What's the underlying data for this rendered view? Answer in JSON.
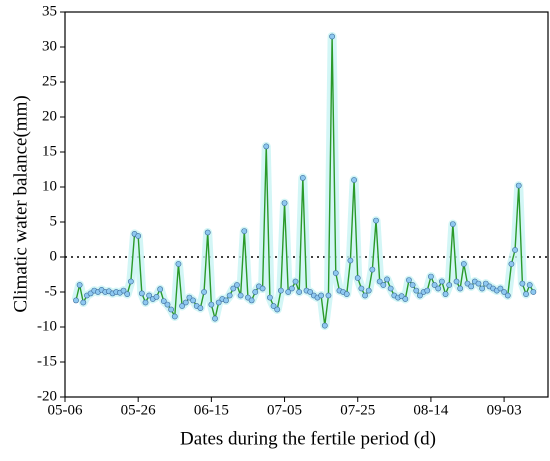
{
  "chart_data": {
    "type": "line",
    "xlabel": "Dates during the fertile period (d)",
    "ylabel": "Climatic water balance(mm)",
    "xlim": [
      0,
      132
    ],
    "ylim": [
      -20,
      35
    ],
    "xticks": [
      {
        "value": 0,
        "label": "05-06"
      },
      {
        "value": 20,
        "label": "05-26"
      },
      {
        "value": 40,
        "label": "06-15"
      },
      {
        "value": 60,
        "label": "07-05"
      },
      {
        "value": 80,
        "label": "07-25"
      },
      {
        "value": 100,
        "label": "08-14"
      },
      {
        "value": 120,
        "label": "09-03"
      }
    ],
    "yticks": [
      -20,
      -15,
      -10,
      -5,
      0,
      5,
      10,
      15,
      20,
      25,
      30,
      35
    ],
    "grid": false,
    "series": [
      {
        "color": "#2a9a2a",
        "marker_color": "#8ec8f0",
        "x": [
          3,
          4,
          5,
          6,
          7,
          8,
          9,
          10,
          11,
          12,
          13,
          14,
          15,
          16,
          17,
          18,
          19,
          20,
          21,
          22,
          23,
          24,
          25,
          26,
          27,
          28,
          29,
          30,
          31,
          32,
          33,
          34,
          35,
          36,
          37,
          38,
          39,
          40,
          41,
          42,
          43,
          44,
          45,
          46,
          47,
          48,
          49,
          50,
          51,
          52,
          53,
          54,
          55,
          56,
          57,
          58,
          59,
          60,
          61,
          62,
          63,
          64,
          65,
          66,
          67,
          68,
          69,
          70,
          71,
          72,
          73,
          74,
          75,
          76,
          77,
          78,
          79,
          80,
          81,
          82,
          83,
          84,
          85,
          86,
          87,
          88,
          89,
          90,
          91,
          92,
          93,
          94,
          95,
          96,
          97,
          98,
          99,
          100,
          101,
          102,
          103,
          104,
          105,
          106,
          107,
          108,
          109,
          110,
          111,
          112,
          113,
          114,
          115,
          116,
          117,
          118,
          119,
          120,
          121,
          122,
          123,
          124,
          125,
          126,
          127,
          128
        ],
        "values": [
          -6.2,
          -4.0,
          -6.5,
          -5.5,
          -5.2,
          -4.8,
          -5.0,
          -4.7,
          -5.0,
          -4.9,
          -5.2,
          -5.0,
          -5.1,
          -4.8,
          -5.3,
          -3.5,
          3.3,
          3.0,
          -5.2,
          -6.5,
          -5.5,
          -6.0,
          -5.7,
          -4.6,
          -6.3,
          -6.8,
          -7.5,
          -8.5,
          -1.0,
          -7.0,
          -6.5,
          -5.8,
          -6.2,
          -7.0,
          -7.3,
          -5.0,
          3.5,
          -6.8,
          -8.8,
          -6.5,
          -6.0,
          -6.2,
          -5.5,
          -4.5,
          -4.0,
          -5.5,
          3.7,
          -5.8,
          -6.2,
          -5.0,
          -4.2,
          -4.5,
          15.8,
          -5.8,
          -7.0,
          -7.5,
          -4.8,
          7.7,
          -5.0,
          -4.5,
          -3.5,
          -5.0,
          11.3,
          -4.8,
          -5.0,
          -5.5,
          -5.8,
          -5.5,
          -9.8,
          -5.5,
          31.5,
          -2.3,
          -4.8,
          -5.0,
          -5.3,
          -0.5,
          11.0,
          -3.0,
          -4.5,
          -5.5,
          -4.8,
          -1.8,
          5.2,
          -3.5,
          -4.0,
          -3.2,
          -4.5,
          -5.5,
          -5.8,
          -5.6,
          -6.0,
          -3.3,
          -4.0,
          -4.8,
          -5.5,
          -5.0,
          -4.8,
          -2.8,
          -4.0,
          -4.5,
          -3.5,
          -5.3,
          -4.0,
          4.7,
          -3.5,
          -4.5,
          -1.0,
          -3.8,
          -4.2,
          -3.5,
          -3.8,
          -4.5,
          -3.8,
          -4.2,
          -4.5,
          -4.8,
          -4.5,
          -5.0,
          -5.5,
          -1.0,
          1.0,
          10.2,
          -3.8,
          -5.3,
          -4.0,
          -5.0
        ]
      }
    ]
  }
}
